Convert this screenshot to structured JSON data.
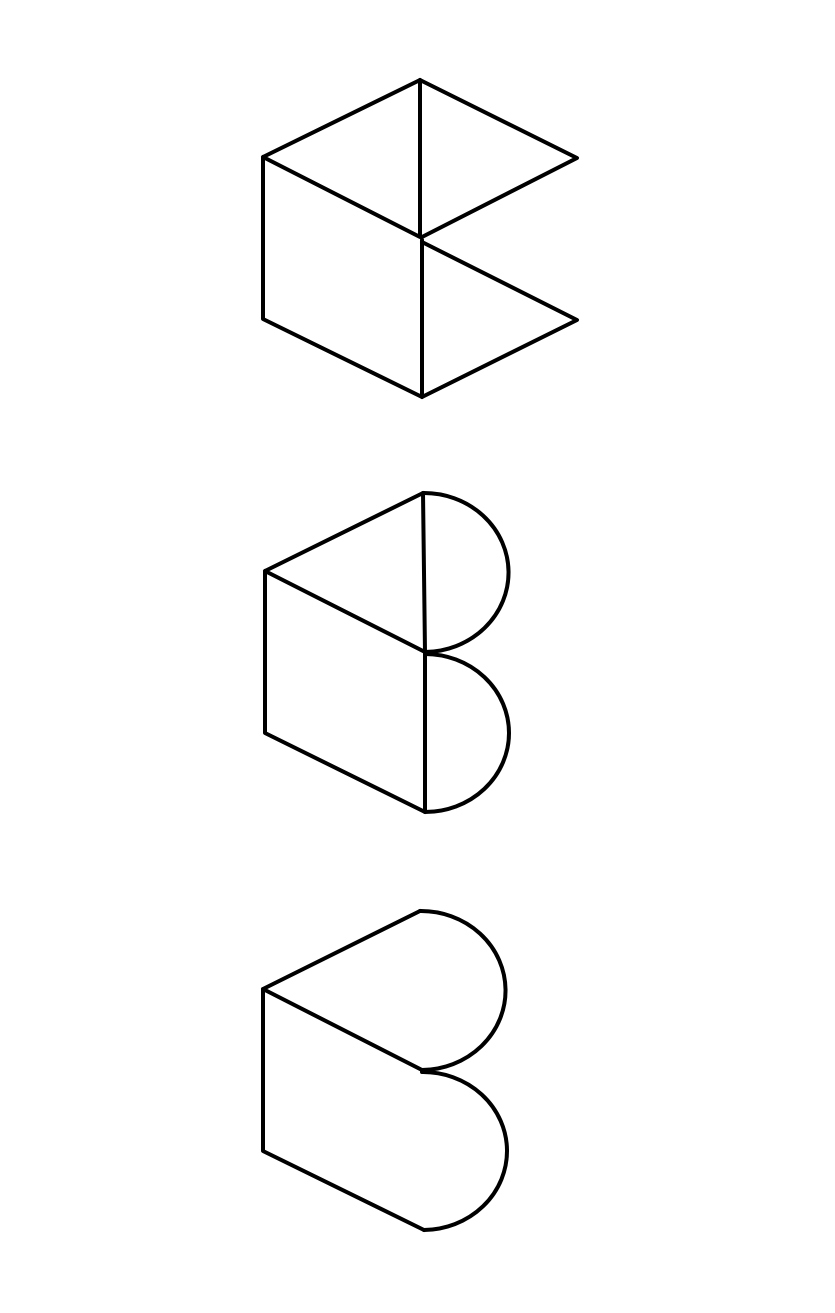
{
  "diagram": {
    "description_visible_text": "",
    "colors": {
      "background": "#ffffff",
      "line": "#000000"
    },
    "figures": [
      {
        "name": "figure-top",
        "variant": "triangular-wings",
        "has-center-divider": true
      },
      {
        "name": "figure-middle",
        "variant": "semicircle-wings",
        "has-center-divider": true
      },
      {
        "name": "figure-bottom",
        "variant": "semicircle-wings",
        "has-center-divider": false
      }
    ]
  }
}
